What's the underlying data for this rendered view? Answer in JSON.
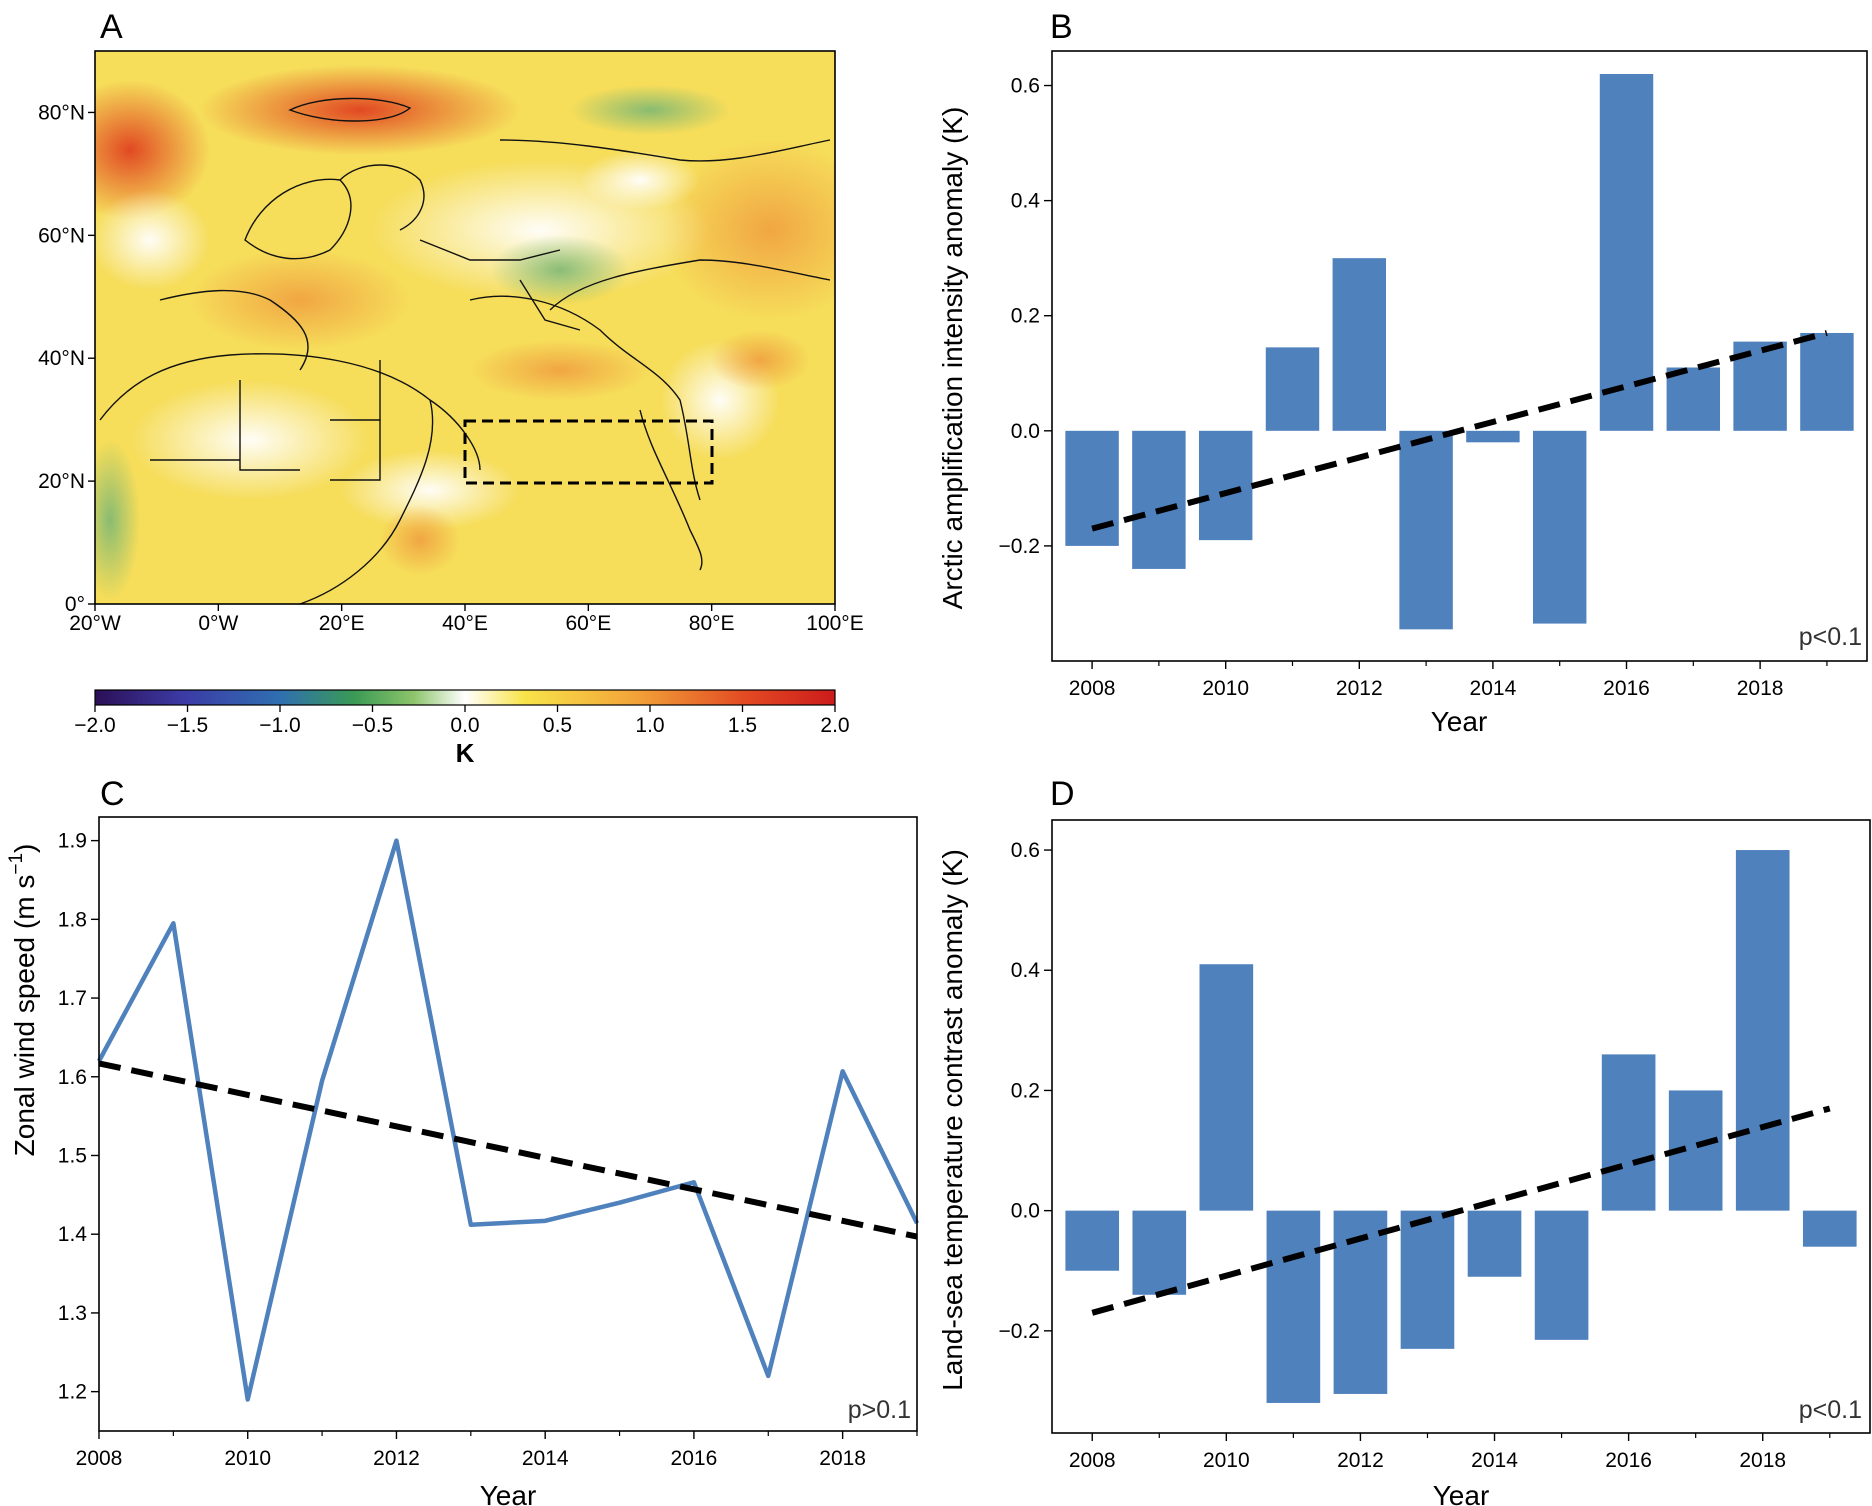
{
  "panels": {
    "A": {
      "label": "A",
      "map": {
        "lat_ticks": [
          "80°N",
          "60°N",
          "40°N",
          "20°N",
          "0°"
        ],
        "lon_ticks": [
          "20°W",
          "0°W",
          "20°E",
          "40°E",
          "60°E",
          "80°E",
          "100°E"
        ],
        "extent": {
          "lon": [
            -20,
            100
          ],
          "lat": [
            0,
            90
          ]
        },
        "box": {
          "lon": [
            40,
            80
          ],
          "lat": [
            20,
            30
          ]
        },
        "colorbar": {
          "ticks": [
            "−2.0",
            "−1.5",
            "−1.0",
            "−0.5",
            "0.0",
            "0.5",
            "1.0",
            "1.5",
            "2.0"
          ],
          "label": "K",
          "range": [
            -2.0,
            2.0
          ],
          "colors": [
            "#2c0f56",
            "#3c3ba6",
            "#2f6fb0",
            "#3a9a55",
            "#8cc46a",
            "#ffffff",
            "#f8e44a",
            "#f3a83a",
            "#e24a23",
            "#cc1b1b"
          ]
        }
      }
    },
    "B": {
      "label": "B",
      "pval": "p<0.1",
      "xlabel": "Year",
      "ylabel": "Arctic amplification intensity anomaly (K)",
      "xticks": [
        "2008",
        "2010",
        "2012",
        "2014",
        "2016",
        "2018"
      ],
      "yticks": [
        "0.6",
        "0.4",
        "0.2",
        "0.0",
        "−0.2"
      ]
    },
    "C": {
      "label": "C",
      "pval": "p>0.1",
      "xlabel": "Year",
      "ylabel_main": "Zonal wind speed (m s",
      "ylabel_sup": "−1",
      "ylabel_end": ")",
      "xticks": [
        "2008",
        "2010",
        "2012",
        "2014",
        "2016",
        "2018"
      ],
      "yticks": [
        "1.9",
        "1.8",
        "1.7",
        "1.6",
        "1.5",
        "1.4",
        "1.3",
        "1.2"
      ]
    },
    "D": {
      "label": "D",
      "pval": "p<0.1",
      "xlabel": "Year",
      "ylabel": "Land-sea temperature contrast anomaly (K)",
      "xticks": [
        "2008",
        "2010",
        "2012",
        "2014",
        "2016",
        "2018"
      ],
      "yticks": [
        "0.6",
        "0.4",
        "0.2",
        "0.0",
        "−0.2"
      ]
    }
  },
  "colors": {
    "bar": "#4f81bd",
    "line": "#4f81bd",
    "trend": "#000000"
  },
  "chart_data": [
    {
      "panel": "B",
      "type": "bar",
      "x": [
        2008,
        2009,
        2010,
        2011,
        2012,
        2013,
        2014,
        2015,
        2016,
        2017,
        2018,
        2019
      ],
      "values": [
        -0.2,
        -0.24,
        -0.19,
        0.145,
        0.3,
        -0.345,
        -0.02,
        -0.335,
        0.62,
        0.11,
        0.155,
        0.17
      ],
      "trend": {
        "x": [
          2008,
          2019
        ],
        "y": [
          -0.17,
          0.17
        ],
        "style": "dashed"
      },
      "xlim": [
        2007.4,
        2019.6
      ],
      "ylim": [
        -0.4,
        0.66
      ],
      "xlabel": "Year",
      "ylabel": "Arctic amplification intensity anomaly (K)",
      "annotation": "p<0.1"
    },
    {
      "panel": "C",
      "type": "line",
      "x": [
        2008,
        2009,
        2010,
        2011,
        2012,
        2013,
        2014,
        2015,
        2016,
        2017,
        2018,
        2019
      ],
      "values": [
        1.62,
        1.795,
        1.19,
        1.595,
        1.9,
        1.412,
        1.417,
        1.44,
        1.466,
        1.22,
        1.607,
        1.414
      ],
      "trend": {
        "x": [
          2008,
          2019
        ],
        "y": [
          1.617,
          1.397
        ],
        "style": "dashed"
      },
      "xlim": [
        2008,
        2019
      ],
      "ylim": [
        1.15,
        1.93
      ],
      "xlabel": "Year",
      "ylabel": "Zonal wind speed (m s−1)",
      "annotation": "p>0.1"
    },
    {
      "panel": "D",
      "type": "bar",
      "x": [
        2008,
        2009,
        2010,
        2011,
        2012,
        2013,
        2014,
        2015,
        2016,
        2017,
        2018,
        2019
      ],
      "values": [
        -0.1,
        -0.14,
        0.41,
        -0.32,
        -0.305,
        -0.23,
        -0.11,
        -0.215,
        0.26,
        0.2,
        0.6,
        -0.06
      ],
      "trend": {
        "x": [
          2008,
          2019
        ],
        "y": [
          -0.17,
          0.17
        ],
        "style": "dashed"
      },
      "xlim": [
        2007.4,
        2019.6
      ],
      "ylim": [
        -0.37,
        0.65
      ],
      "xlabel": "Year",
      "ylabel": "Land-sea temperature contrast anomaly (K)",
      "annotation": "p<0.1"
    }
  ]
}
